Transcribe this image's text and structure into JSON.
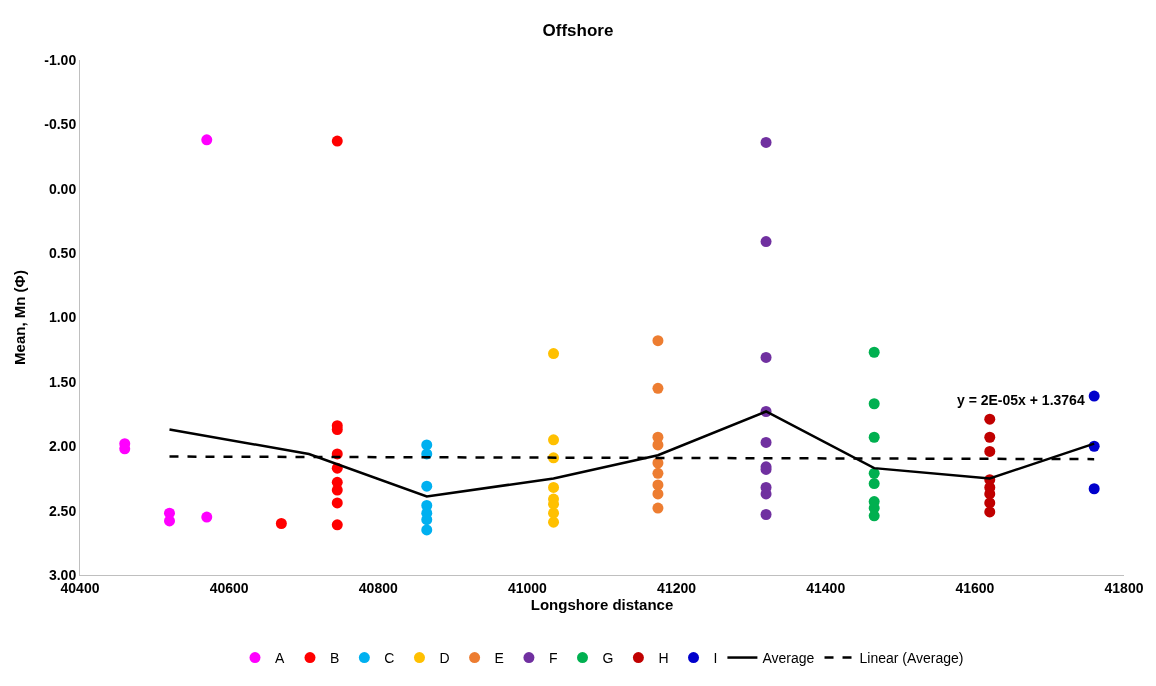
{
  "chart_data": {
    "type": "scatter",
    "title": "Offshore",
    "xlabel": "Longshore distance",
    "ylabel": "Mean, Mn (Φ)",
    "xlim": [
      40400,
      41800
    ],
    "xticks": [
      40400,
      40600,
      40800,
      41000,
      41200,
      41400,
      41600,
      41800
    ],
    "ylim": [
      3.0,
      -1.0
    ],
    "yticks": [
      {
        "value": -1.0,
        "label": "-1.00"
      },
      {
        "value": -0.5,
        "label": "-0.50"
      },
      {
        "value": 0,
        "label": "0.00"
      },
      {
        "value": 0.5,
        "label": "0.50"
      },
      {
        "value": 1.0,
        "label": "1.00"
      },
      {
        "value": 1.5,
        "label": "1.50"
      },
      {
        "value": 2.0,
        "label": "2.00"
      },
      {
        "value": 2.5,
        "label": "2.50"
      },
      {
        "value": 3.0,
        "label": "3.00"
      }
    ],
    "legend": "bottom",
    "marker": "circle",
    "series": [
      {
        "name": "A",
        "color": "#ff00ff",
        "x": [
          40460,
          40460,
          40520,
          40520,
          40570,
          40570
        ],
        "values": [
          1.98,
          2.02,
          2.52,
          2.58,
          -0.38,
          2.55
        ]
      },
      {
        "name": "B",
        "color": "#ff0000",
        "x": [
          40670,
          40745,
          40745,
          40745,
          40745,
          40745,
          40745,
          40745,
          40745,
          40745
        ],
        "values": [
          2.6,
          -0.37,
          1.84,
          1.87,
          2.06,
          2.17,
          2.28,
          2.34,
          2.44,
          2.61
        ]
      },
      {
        "name": "C",
        "color": "#00b0f0",
        "x": [
          40865,
          40865,
          40865,
          40865,
          40865,
          40865,
          40865
        ],
        "values": [
          1.99,
          2.06,
          2.31,
          2.46,
          2.52,
          2.57,
          2.65
        ]
      },
      {
        "name": "D",
        "color": "#ffc000",
        "x": [
          41035,
          41035,
          41035,
          41035,
          41035,
          41035,
          41035,
          41035
        ],
        "values": [
          1.28,
          1.95,
          2.09,
          2.32,
          2.41,
          2.45,
          2.52,
          2.59
        ]
      },
      {
        "name": "E",
        "color": "#ed7d31",
        "x": [
          41175,
          41175,
          41175,
          41175,
          41175,
          41175,
          41175,
          41175,
          41175
        ],
        "values": [
          1.18,
          1.55,
          1.93,
          1.99,
          2.13,
          2.21,
          2.3,
          2.37,
          2.48
        ]
      },
      {
        "name": "F",
        "color": "#7030a0",
        "x": [
          41320,
          41320,
          41320,
          41320,
          41320,
          41320,
          41320,
          41320,
          41320,
          41320
        ],
        "values": [
          -0.36,
          0.41,
          1.31,
          1.73,
          1.97,
          2.16,
          2.18,
          2.32,
          2.37,
          2.53
        ]
      },
      {
        "name": "G",
        "color": "#00b050",
        "x": [
          41465,
          41465,
          41465,
          41465,
          41465,
          41465,
          41465,
          41465
        ],
        "values": [
          1.27,
          1.67,
          1.93,
          2.21,
          2.29,
          2.43,
          2.48,
          2.54
        ]
      },
      {
        "name": "H",
        "color": "#c00000",
        "x": [
          41620,
          41620,
          41620,
          41620,
          41620,
          41620,
          41620,
          41620
        ],
        "values": [
          1.79,
          1.93,
          2.04,
          2.26,
          2.32,
          2.37,
          2.44,
          2.51
        ]
      },
      {
        "name": "I",
        "color": "#0000cc",
        "x": [
          41760,
          41760,
          41760
        ],
        "values": [
          1.61,
          2.0,
          2.33
        ]
      },
      {
        "name": "Average",
        "type": "line",
        "color": "#000000",
        "marker": "none",
        "line_style": "solid",
        "x": [
          40520,
          40707,
          40865,
          41035,
          41175,
          41320,
          41465,
          41620,
          41760
        ],
        "values": [
          1.87,
          2.06,
          2.39,
          2.25,
          2.07,
          1.73,
          2.17,
          2.25,
          1.98
        ]
      },
      {
        "name": "Linear (Average)",
        "type": "line",
        "color": "#000000",
        "marker": "none",
        "line_style": "dashed",
        "x": [
          40520,
          41760
        ],
        "values": [
          2.08,
          2.1
        ]
      }
    ],
    "annotations": [
      "y = 2E-05x + 1.3764"
    ]
  }
}
